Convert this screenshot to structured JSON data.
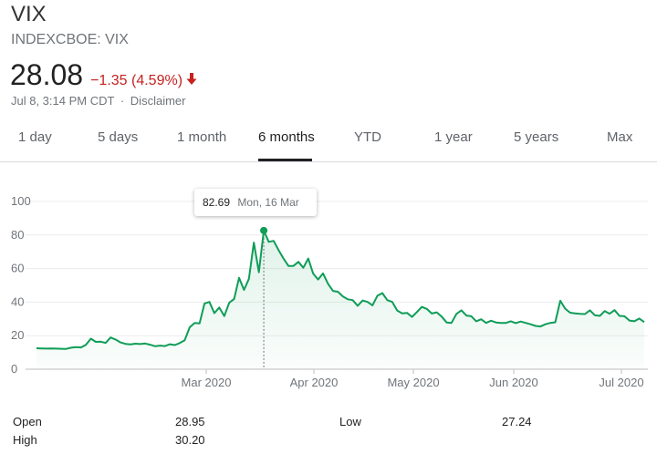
{
  "header": {
    "ticker": "VIX",
    "exchange": "INDEXCBOE: VIX",
    "price": "28.08",
    "change": "−1.35 (4.59%)",
    "change_icon": "arrow-down-icon",
    "timestamp": "Jul 8, 3:14 PM CDT",
    "separator": "·",
    "disclaimer": "Disclaimer"
  },
  "colors": {
    "line": "#0f9d58",
    "negative": "#c5221f"
  },
  "tabs": [
    {
      "label": "1 day"
    },
    {
      "label": "5 days"
    },
    {
      "label": "1 month"
    },
    {
      "label": "6 months",
      "active": true
    },
    {
      "label": "YTD"
    },
    {
      "label": "1 year"
    },
    {
      "label": "5 years"
    },
    {
      "label": "Max"
    }
  ],
  "tooltip": {
    "value": "82.69",
    "date": "Mon, 16 Mar"
  },
  "stats": {
    "open_label": "Open",
    "open_value": "28.95",
    "high_label": "High",
    "high_value": "30.20",
    "low_label": "Low",
    "low_value": "27.24"
  },
  "chart_data": {
    "type": "area",
    "y_ticks": [
      0,
      20,
      40,
      60,
      80,
      100
    ],
    "ylim": [
      0,
      100
    ],
    "x_ticks": [
      "Mar 2020",
      "Apr 2020",
      "May 2020",
      "Jun 2020",
      "Jul 2020"
    ],
    "grid": true,
    "highlight": {
      "date": "Mon, 16 Mar",
      "value": 82.69
    },
    "series": [
      {
        "values": [
          12.5,
          12.4,
          12.3,
          12.4,
          12.3,
          12.2,
          12.1,
          12.8,
          13.2,
          13.0,
          14.5,
          18.2,
          16.3,
          16.4,
          15.7,
          18.9,
          17.7,
          16.0,
          15.1,
          14.8,
          15.2,
          15.0,
          15.3,
          14.6,
          13.7,
          14.1,
          13.8,
          14.9,
          14.4,
          15.6,
          17.3,
          25.0,
          27.6,
          27.3,
          39.2,
          40.1,
          33.4,
          36.8,
          31.7,
          39.6,
          41.9,
          54.5,
          47.3,
          53.9,
          75.5,
          57.8,
          82.69,
          75.9,
          76.5,
          71.0,
          66.0,
          61.6,
          61.6,
          64.0,
          60.5,
          66.0,
          57.0,
          53.5,
          57.1,
          50.9,
          46.7,
          46.2,
          43.4,
          41.7,
          41.2,
          37.8,
          41.0,
          40.1,
          38.1,
          43.8,
          45.4,
          41.2,
          40.1,
          35.0,
          33.3,
          33.6,
          31.2,
          34.1,
          37.2,
          35.9,
          33.2,
          33.9,
          31.4,
          27.9,
          27.6,
          33.0,
          35.1,
          32.0,
          31.6,
          28.6,
          29.8,
          27.6,
          28.9,
          27.9,
          27.6,
          27.6,
          28.6,
          27.5,
          28.4,
          27.6,
          26.8,
          25.8,
          25.5,
          26.8,
          27.6,
          28.0,
          40.8,
          36.1,
          33.7,
          33.3,
          33.0,
          32.9,
          35.1,
          32.2,
          31.8,
          34.7,
          33.1,
          35.2,
          31.8,
          31.6,
          29.0,
          28.6,
          30.2,
          28.1
        ]
      }
    ]
  }
}
